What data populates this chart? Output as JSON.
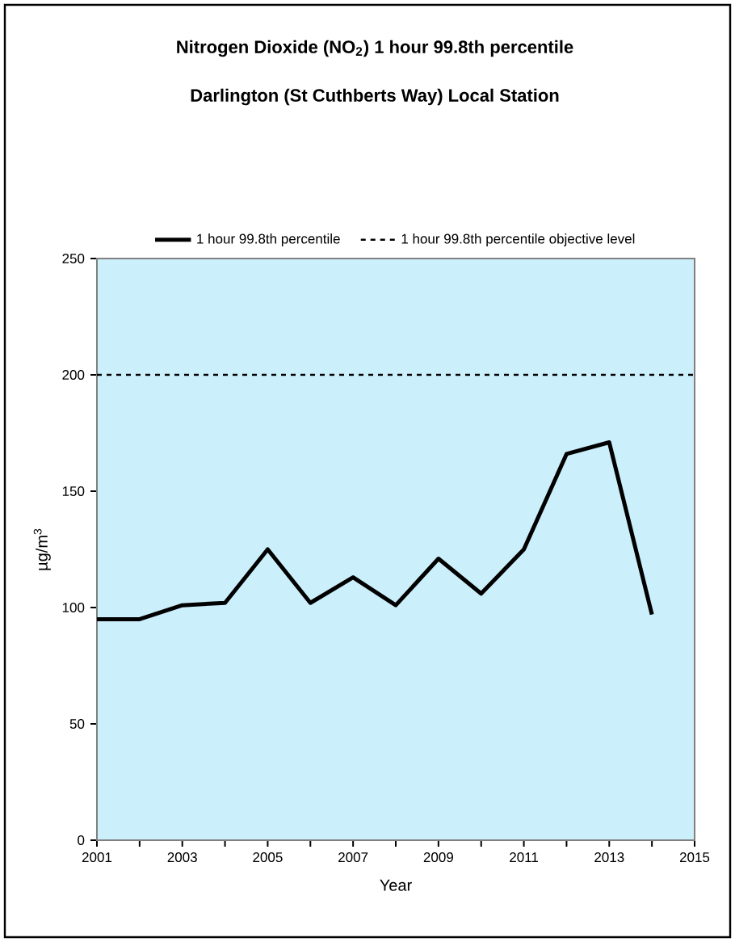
{
  "chart_data": {
    "type": "line",
    "title": "Nitrogen Dioxide (NO$_{2}$) 1 hour 99.8th percentile",
    "subtitle": "Darlington (St Cuthberts Way) Local Station",
    "xlabel": "Year",
    "ylabel": "µg/m$^{3}$",
    "x": [
      2001,
      2002,
      2003,
      2004,
      2005,
      2006,
      2007,
      2008,
      2009,
      2010,
      2011,
      2012,
      2013,
      2014
    ],
    "series": [
      {
        "name": "1 hour 99.8th percentile",
        "color": "#000000",
        "values": [
          95,
          95,
          101,
          102,
          125,
          102,
          113,
          101,
          121,
          106,
          125,
          166,
          171,
          97
        ]
      },
      {
        "name": "1 hour 99.8th percentile objective level",
        "color": "#000000",
        "line_style": "dashed",
        "x": [
          2001,
          2015
        ],
        "values": [
          200,
          200
        ]
      }
    ],
    "xlim": [
      2001,
      2015
    ],
    "ylim": [
      0,
      250
    ],
    "xticks": [
      2001,
      {
        "value": 2002,
        "label": null
      },
      2003,
      {
        "value": 2004,
        "label": null
      },
      2005,
      {
        "value": 2006,
        "label": null
      },
      2007,
      {
        "value": 2008,
        "label": null
      },
      2009,
      {
        "value": 2010,
        "label": null
      },
      2011,
      {
        "value": 2012,
        "label": null
      },
      2013,
      {
        "value": 2014,
        "label": null
      },
      2015
    ],
    "yticks": [
      0,
      50,
      100,
      150,
      200,
      250
    ],
    "legend": "top",
    "grid": false,
    "marker": "none"
  }
}
